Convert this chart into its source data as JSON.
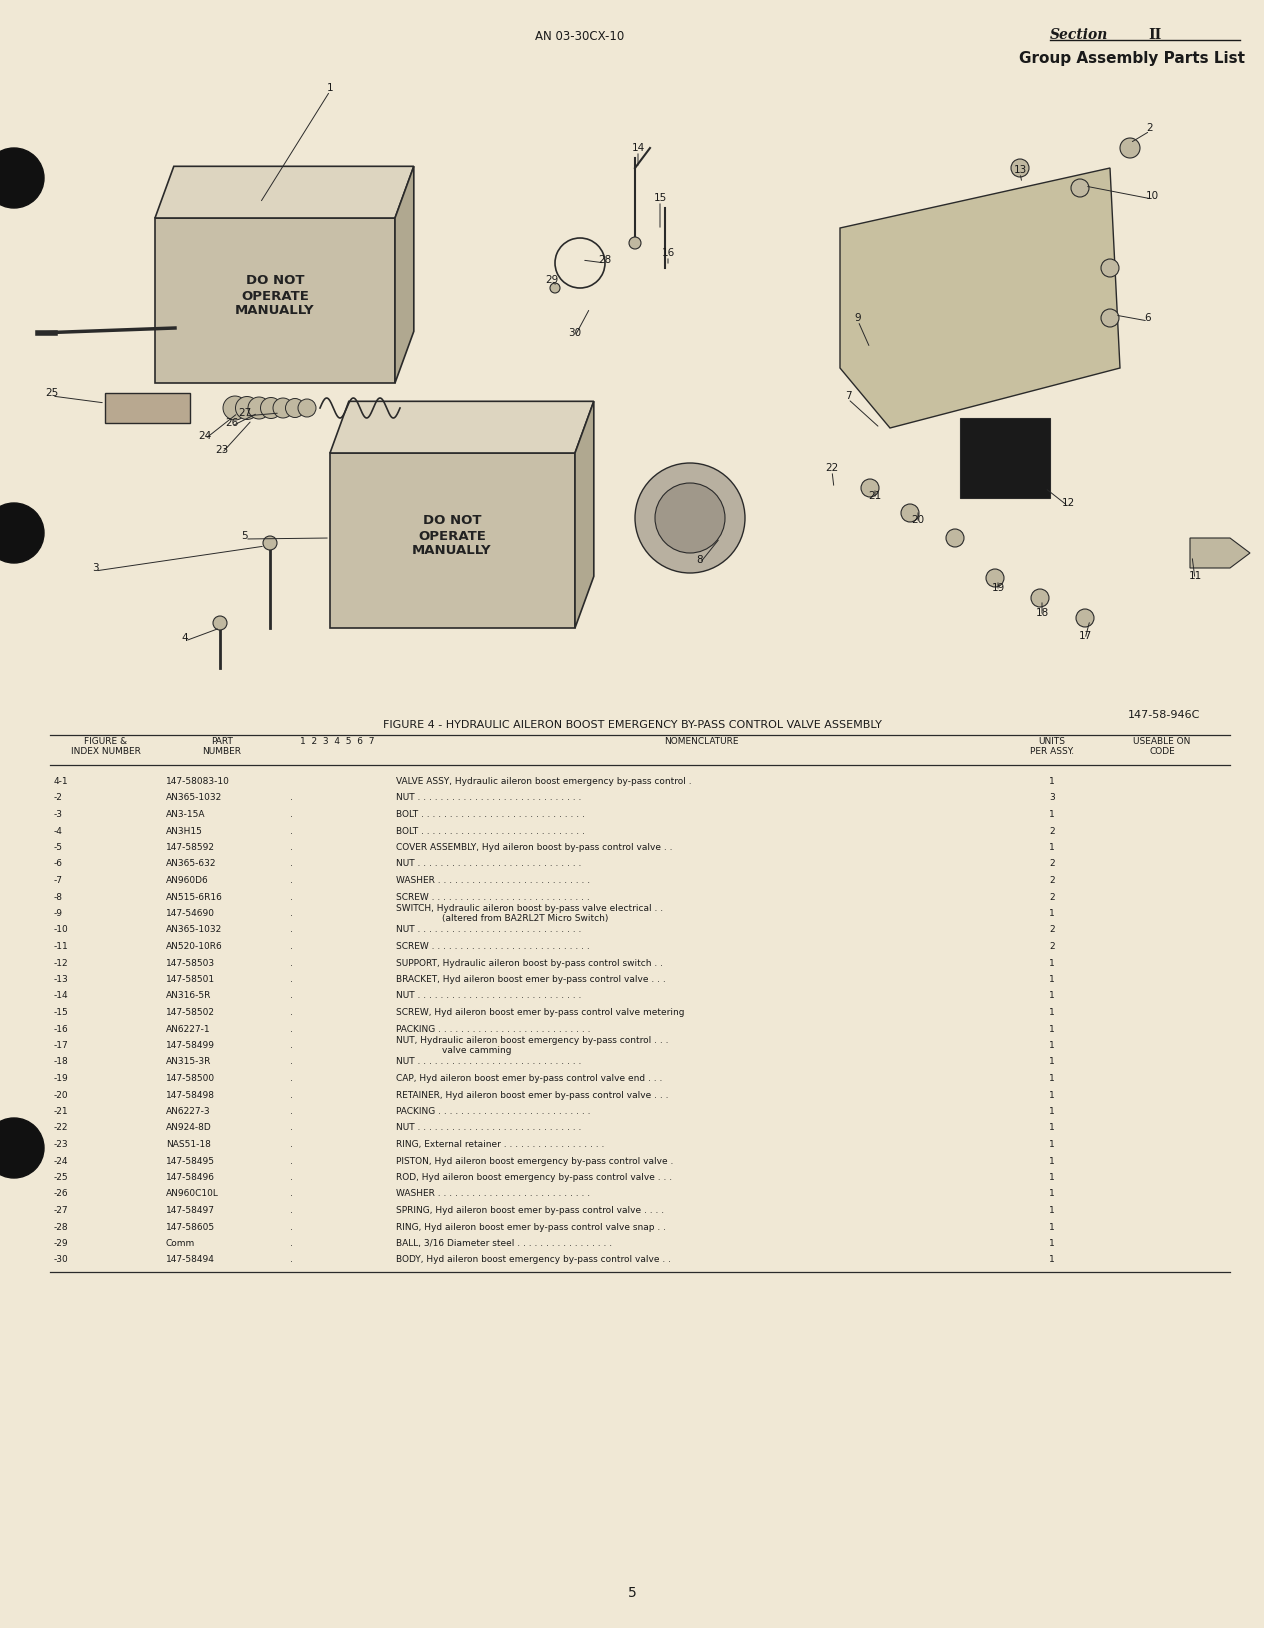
{
  "page_color": "#f0e8d5",
  "text_color": "#1a1a1a",
  "line_color": "#2a2a2a",
  "section_text": "Section",
  "section_num": "II",
  "header_doc": "AN 03-30CX-10",
  "header_title": "Group Assembly Parts List",
  "figure_caption": "FIGURE 4 - HYDRAULIC AILERON BOOST EMERGENCY BY-PASS CONTROL VALVE ASSEMBLY",
  "figure_ref": "147-58-946C",
  "page_number": "5",
  "col_headers": [
    "FIGURE &\nINDEX NUMBER",
    "PART\nNUMBER",
    "1  2  3  4  5  6  7",
    "NOMENCLATURE",
    "UNITS\nPER ASSY.",
    "USEABLE ON\nCODE"
  ],
  "rows": [
    [
      "4-1",
      "147-58083-10",
      0,
      "VALVE ASSY, Hydraulic aileron boost emergency by-pass control .",
      "1",
      ""
    ],
    [
      "-2",
      "AN365-1032",
      1,
      "NUT . . . . . . . . . . . . . . . . . . . . . . . . . . . . .",
      "3",
      ""
    ],
    [
      "-3",
      "AN3-15A",
      1,
      "BOLT . . . . . . . . . . . . . . . . . . . . . . . . . . . . .",
      "1",
      ""
    ],
    [
      "-4",
      "AN3H15",
      1,
      "BOLT . . . . . . . . . . . . . . . . . . . . . . . . . . . . .",
      "2",
      ""
    ],
    [
      "-5",
      "147-58592",
      1,
      "COVER ASSEMBLY, Hyd aileron boost by-pass control valve . .",
      "1",
      ""
    ],
    [
      "-6",
      "AN365-632",
      1,
      "NUT . . . . . . . . . . . . . . . . . . . . . . . . . . . . .",
      "2",
      ""
    ],
    [
      "-7",
      "AN960D6",
      1,
      "WASHER . . . . . . . . . . . . . . . . . . . . . . . . . . .",
      "2",
      ""
    ],
    [
      "-8",
      "AN515-6R16",
      1,
      "SCREW . . . . . . . . . . . . . . . . . . . . . . . . . . . .",
      "2",
      ""
    ],
    [
      "-9",
      "147-54690",
      1,
      "SWITCH, Hydraulic aileron boost by-pass valve electrical . .\n        (altered from BA2RL2T Micro Switch)",
      "1",
      ""
    ],
    [
      "-10",
      "AN365-1032",
      1,
      "NUT . . . . . . . . . . . . . . . . . . . . . . . . . . . . .",
      "2",
      ""
    ],
    [
      "-11",
      "AN520-10R6",
      1,
      "SCREW . . . . . . . . . . . . . . . . . . . . . . . . . . . .",
      "2",
      ""
    ],
    [
      "-12",
      "147-58503",
      1,
      "SUPPORT, Hydraulic aileron boost by-pass control switch . .",
      "1",
      ""
    ],
    [
      "-13",
      "147-58501",
      1,
      "BRACKET, Hyd aileron boost emer by-pass control valve . . .",
      "1",
      ""
    ],
    [
      "-14",
      "AN316-5R",
      1,
      "NUT . . . . . . . . . . . . . . . . . . . . . . . . . . . . .",
      "1",
      ""
    ],
    [
      "-15",
      "147-58502",
      1,
      "SCREW, Hyd aileron boost emer by-pass control valve metering",
      "1",
      ""
    ],
    [
      "-16",
      "AN6227-1",
      1,
      "PACKING . . . . . . . . . . . . . . . . . . . . . . . . . . .",
      "1",
      ""
    ],
    [
      "-17",
      "147-58499",
      1,
      "NUT, Hydraulic aileron boost emergency by-pass control . . .\n        valve camming",
      "1",
      ""
    ],
    [
      "-18",
      "AN315-3R",
      1,
      "NUT . . . . . . . . . . . . . . . . . . . . . . . . . . . . .",
      "1",
      ""
    ],
    [
      "-19",
      "147-58500",
      1,
      "CAP, Hyd aileron boost emer by-pass control valve end . . .",
      "1",
      ""
    ],
    [
      "-20",
      "147-58498",
      1,
      "RETAINER, Hyd aileron boost emer by-pass control valve . . .",
      "1",
      ""
    ],
    [
      "-21",
      "AN6227-3",
      1,
      "PACKING . . . . . . . . . . . . . . . . . . . . . . . . . . .",
      "1",
      ""
    ],
    [
      "-22",
      "AN924-8D",
      1,
      "NUT . . . . . . . . . . . . . . . . . . . . . . . . . . . . .",
      "1",
      ""
    ],
    [
      "-23",
      "NAS51-18",
      1,
      "RING, External retainer . . . . . . . . . . . . . . . . . .",
      "1",
      ""
    ],
    [
      "-24",
      "147-58495",
      1,
      "PISTON, Hyd aileron boost emergency by-pass control valve .",
      "1",
      ""
    ],
    [
      "-25",
      "147-58496",
      1,
      "ROD, Hyd aileron boost emergency by-pass control valve . . .",
      "1",
      ""
    ],
    [
      "-26",
      "AN960C10L",
      1,
      "WASHER . . . . . . . . . . . . . . . . . . . . . . . . . . .",
      "1",
      ""
    ],
    [
      "-27",
      "147-58497",
      1,
      "SPRING, Hyd aileron boost emer by-pass control valve . . . .",
      "1",
      ""
    ],
    [
      "-28",
      "147-58605",
      1,
      "RING, Hyd aileron boost emer by-pass control valve snap . .",
      "1",
      ""
    ],
    [
      "-29",
      "Comm",
      1,
      "BALL, 3/16 Diameter steel . . . . . . . . . . . . . . . . .",
      "1",
      ""
    ],
    [
      "-30",
      "147-58494",
      1,
      "BODY, Hyd aileron boost emergency by-pass control valve . .",
      "1",
      ""
    ]
  ]
}
